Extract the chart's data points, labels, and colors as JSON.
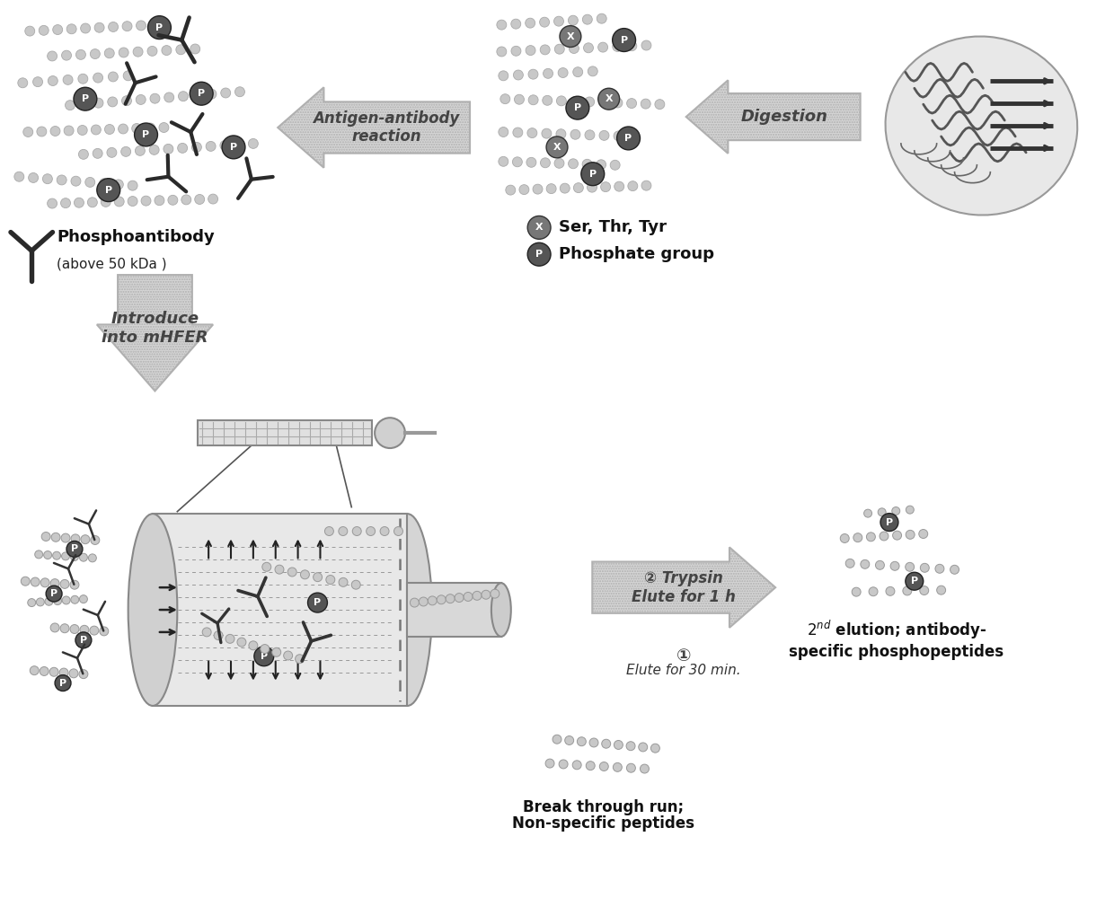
{
  "bg_color": "#ffffff",
  "bead_color": "#c8c8c8",
  "bead_edge": "#999999",
  "phospho_color": "#555555",
  "phospho_edge": "#222222",
  "X_color": "#777777",
  "X_edge": "#333333",
  "antibody_color": "#333333",
  "arrow_fc": "#d0d0d0",
  "arrow_ec": "#aaaaaa",
  "arrow_text_color": "#555555",
  "arrow1_label": "Antigen-antibody\nreaction",
  "arrow2_label": "Digestion",
  "arrow3_label": "Introduce\ninto mHFER",
  "arrow4_label": "② Trypsin\nElute for 1 h",
  "arrow4_sub_num": "①",
  "arrow4_sub_text": "Elute for 30 min.",
  "label_phosphoantibody_bold": "Phosphoantibody",
  "label_phosphoantibody_sub": "(above 50 kDa )",
  "label_legend1": "Ser, Thr, Tyr",
  "label_legend2": "Phosphate group",
  "label_breakthrough_bold": "Break through run;",
  "label_breakthrough_sub": "Non-specific peptides",
  "label_2nd_elution": "$2^{nd}$ elution; antibody-\nspecific phosphopeptides",
  "figsize": [
    12.4,
    10.1
  ],
  "dpi": 100
}
